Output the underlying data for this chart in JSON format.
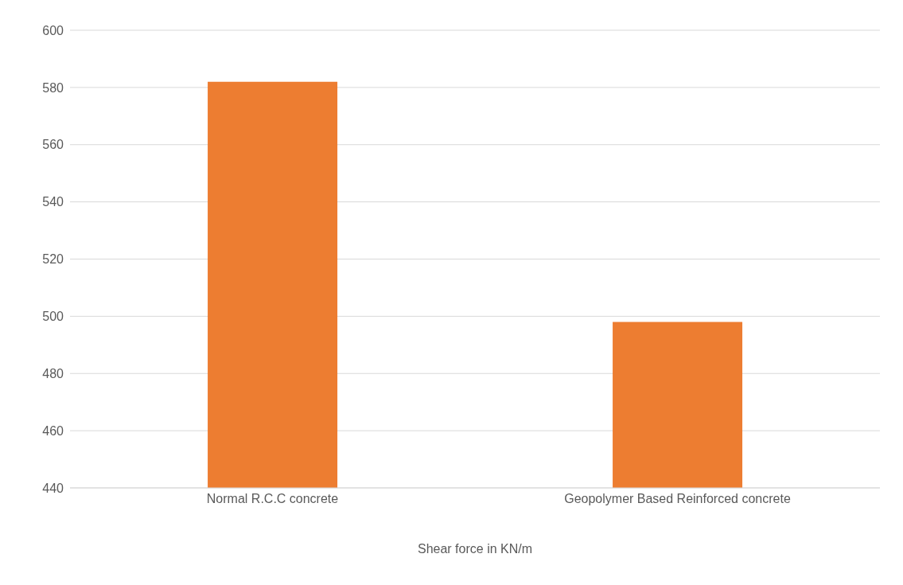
{
  "chart_data": {
    "type": "bar",
    "categories": [
      "Normal R.C.C concrete",
      "Geopolymer Based Reinforced concrete"
    ],
    "values": [
      582,
      498
    ],
    "color": "#ed7d31",
    "xlabel": "Shear force in KN/m",
    "ylim": [
      440,
      600
    ],
    "yticks": [
      440,
      460,
      480,
      500,
      520,
      540,
      560,
      580,
      600
    ],
    "grid": "y"
  }
}
